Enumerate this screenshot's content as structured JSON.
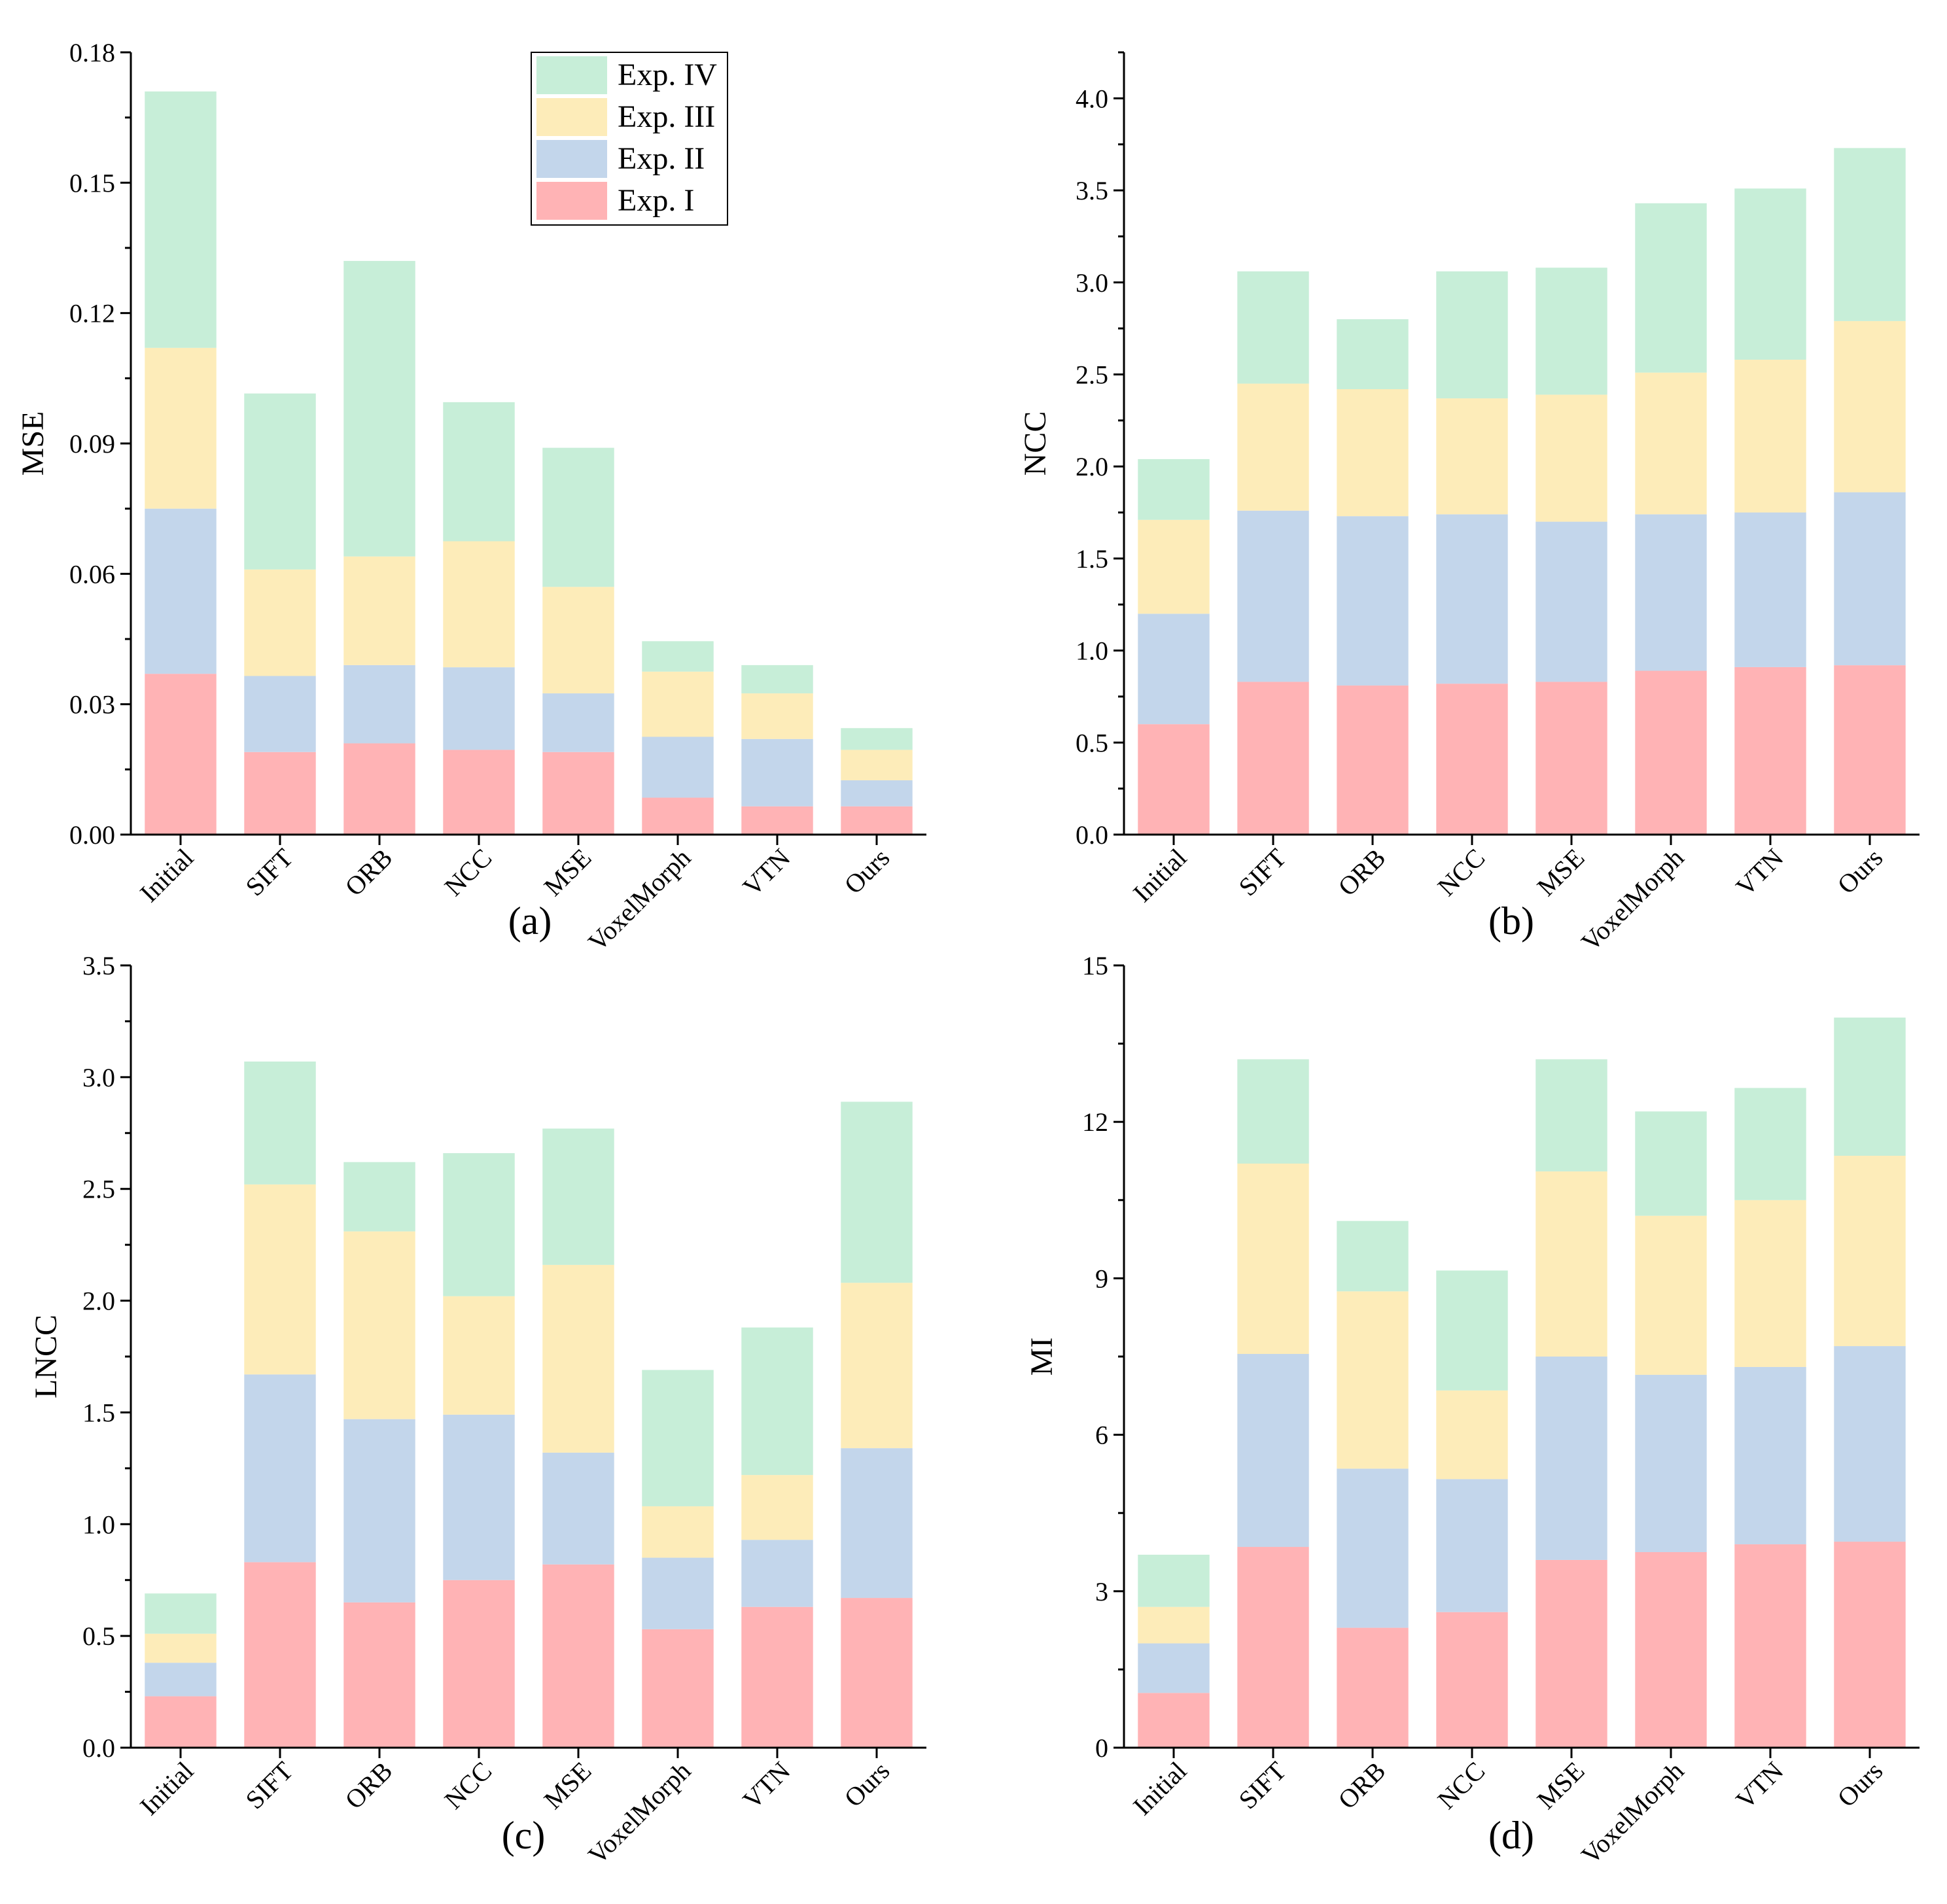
{
  "chart_data": [
    {
      "type": "bar",
      "stacked": true,
      "panel_label": "(a)",
      "ylabel": "MSE",
      "xlabel": "",
      "ylim": [
        0,
        0.18
      ],
      "yticks": [
        "0.00",
        "0.03",
        "0.06",
        "0.09",
        "0.12",
        "0.15",
        "0.18"
      ],
      "categories": [
        "Initial",
        "SIFT",
        "ORB",
        "NCC",
        "MSE",
        "VoxelMorph",
        "VTN",
        "Ours"
      ],
      "series": [
        {
          "name": "Exp. I",
          "values": [
            0.037,
            0.019,
            0.021,
            0.0195,
            0.019,
            0.0085,
            0.0065,
            0.0065
          ]
        },
        {
          "name": "Exp. II",
          "values": [
            0.038,
            0.0175,
            0.018,
            0.019,
            0.0135,
            0.014,
            0.0155,
            0.006
          ]
        },
        {
          "name": "Exp. III",
          "values": [
            0.037,
            0.0245,
            0.025,
            0.029,
            0.0245,
            0.015,
            0.0105,
            0.007
          ]
        },
        {
          "name": "Exp. IV",
          "values": [
            0.059,
            0.0405,
            0.068,
            0.032,
            0.032,
            0.007,
            0.0065,
            0.005
          ]
        }
      ],
      "legend": {
        "position": "top-center",
        "entries": [
          "Exp. IV",
          "Exp. III",
          "Exp. II",
          "Exp. I"
        ]
      }
    },
    {
      "type": "bar",
      "stacked": true,
      "panel_label": "(b)",
      "ylabel": "NCC",
      "xlabel": "",
      "ylim": [
        0,
        4.25
      ],
      "yticks": [
        "0.0",
        "0.5",
        "1.0",
        "1.5",
        "2.0",
        "2.5",
        "3.0",
        "3.5",
        "4.0"
      ],
      "categories": [
        "Initial",
        "SIFT",
        "ORB",
        "NCC",
        "MSE",
        "VoxelMorph",
        "VTN",
        "Ours"
      ],
      "series": [
        {
          "name": "Exp. I",
          "values": [
            0.6,
            0.83,
            0.81,
            0.82,
            0.83,
            0.89,
            0.91,
            0.92
          ]
        },
        {
          "name": "Exp. II",
          "values": [
            0.6,
            0.93,
            0.92,
            0.92,
            0.87,
            0.85,
            0.84,
            0.94
          ]
        },
        {
          "name": "Exp. III",
          "values": [
            0.51,
            0.69,
            0.69,
            0.63,
            0.69,
            0.77,
            0.83,
            0.93
          ]
        },
        {
          "name": "Exp. IV",
          "values": [
            0.33,
            0.61,
            0.38,
            0.69,
            0.69,
            0.92,
            0.93,
            0.94
          ]
        }
      ]
    },
    {
      "type": "bar",
      "stacked": true,
      "panel_label": "(c)",
      "ylabel": "LNCC",
      "xlabel": "",
      "ylim": [
        0,
        3.5
      ],
      "yticks": [
        "0.0",
        "0.5",
        "1.0",
        "1.5",
        "2.0",
        "2.5",
        "3.0",
        "3.5"
      ],
      "categories": [
        "Initial",
        "SIFT",
        "ORB",
        "NCC",
        "MSE",
        "VoxelMorph",
        "VTN",
        "Ours"
      ],
      "series": [
        {
          "name": "Exp. I",
          "values": [
            0.23,
            0.83,
            0.65,
            0.75,
            0.82,
            0.53,
            0.63,
            0.67
          ]
        },
        {
          "name": "Exp. II",
          "values": [
            0.15,
            0.84,
            0.82,
            0.74,
            0.5,
            0.32,
            0.3,
            0.67
          ]
        },
        {
          "name": "Exp. III",
          "values": [
            0.13,
            0.85,
            0.84,
            0.53,
            0.84,
            0.23,
            0.29,
            0.74
          ]
        },
        {
          "name": "Exp. IV",
          "values": [
            0.18,
            0.55,
            0.31,
            0.64,
            0.61,
            0.61,
            0.66,
            0.81
          ]
        }
      ]
    },
    {
      "type": "bar",
      "stacked": true,
      "panel_label": "(d)",
      "ylabel": "MI",
      "xlabel": "",
      "ylim": [
        0,
        15
      ],
      "yticks": [
        "0",
        "3",
        "6",
        "9",
        "12",
        "15"
      ],
      "categories": [
        "Initial",
        "SIFT",
        "ORB",
        "NCC",
        "MSE",
        "VoxelMorph",
        "VTN",
        "Ours"
      ],
      "series": [
        {
          "name": "Exp. I",
          "values": [
            1.05,
            3.85,
            2.3,
            2.6,
            3.6,
            3.75,
            3.9,
            3.95
          ]
        },
        {
          "name": "Exp. II",
          "values": [
            0.95,
            3.7,
            3.05,
            2.55,
            3.9,
            3.4,
            3.4,
            3.75
          ]
        },
        {
          "name": "Exp. III",
          "values": [
            0.7,
            3.65,
            3.4,
            1.7,
            3.55,
            3.05,
            3.2,
            3.65
          ]
        },
        {
          "name": "Exp. IV",
          "values": [
            1.0,
            2.0,
            1.35,
            2.3,
            2.15,
            2.0,
            2.15,
            2.65
          ]
        }
      ]
    }
  ],
  "colors": {
    "Exp. I": "#ffb3b5",
    "Exp. II": "#c3d6eb",
    "Exp. III": "#fdecb9",
    "Exp. IV": "#c7eed8"
  }
}
